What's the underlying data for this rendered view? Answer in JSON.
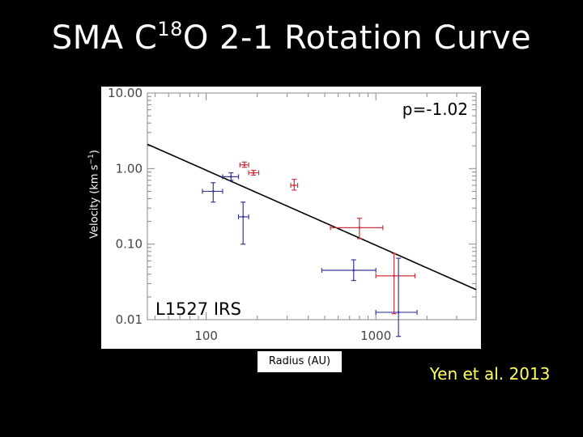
{
  "slide": {
    "title_main": "SMA C",
    "title_sup": "18",
    "title_tail": "O 2-1 Rotation Curve",
    "ylabel_main": "Velocity (km s",
    "ylabel_sup": "−1",
    "ylabel_tail": ")",
    "xlabel": "Radius (AU)",
    "citation": "Yen et al. 2013"
  },
  "chart_data": {
    "type": "scatter",
    "title": "SMA C18O 2-1 Rotation Curve",
    "xlabel": "Radius (AU)",
    "ylabel": "Velocity (km s−1)",
    "xscale": "log",
    "yscale": "log",
    "xlim": [
      45,
      3900
    ],
    "ylim": [
      0.01,
      10
    ],
    "x_ticks": [
      100,
      1000
    ],
    "x_tick_labels": [
      "100",
      "1000"
    ],
    "y_ticks": [
      0.01,
      0.1,
      1,
      10
    ],
    "y_tick_labels": [
      "0.01",
      "0.10",
      "1.00",
      "10.00"
    ],
    "annotations": [
      "p=-1.02",
      "L1527 IRS"
    ],
    "colors": {
      "red": "#cc3340",
      "blue": "#3a3a9c",
      "fit": "#000000"
    },
    "series": [
      {
        "color": "red",
        "points": [
          {
            "x": 168,
            "y": 1.12,
            "xerr": [
              158,
              178
            ],
            "yerr": [
              1.04,
              1.22
            ]
          },
          {
            "x": 190,
            "y": 0.88,
            "xerr": [
              178,
              204
            ],
            "yerr": [
              0.82,
              0.95
            ]
          },
          {
            "x": 330,
            "y": 0.6,
            "xerr": [
              315,
              346
            ],
            "yerr": [
              0.52,
              0.72
            ]
          },
          {
            "x": 800,
            "y": 0.165,
            "xerr": [
              540,
              1100
            ],
            "yerr": [
              0.118,
              0.22
            ]
          },
          {
            "x": 1280,
            "y": 0.038,
            "xerr": [
              1000,
              1700
            ],
            "yerr": [
              0.012,
              0.075
            ]
          }
        ]
      },
      {
        "color": "blue",
        "points": [
          {
            "x": 110,
            "y": 0.5,
            "xerr": [
              95,
              125
            ],
            "yerr": [
              0.36,
              0.65
            ]
          },
          {
            "x": 140,
            "y": 0.78,
            "xerr": [
              125,
              155
            ],
            "yerr": [
              0.7,
              0.88
            ]
          },
          {
            "x": 165,
            "y": 0.23,
            "xerr": [
              155,
              178
            ],
            "yerr": [
              0.1,
              0.36
            ]
          },
          {
            "x": 740,
            "y": 0.045,
            "xerr": [
              480,
              1000
            ],
            "yerr": [
              0.033,
              0.062
            ]
          },
          {
            "x": 1360,
            "y": 0.0125,
            "xerr": [
              1000,
              1750
            ],
            "yerr": [
              0.006,
              0.065
            ]
          }
        ]
      }
    ],
    "fit": {
      "points": [
        [
          45,
          2.1
        ],
        [
          3900,
          0.025
        ]
      ]
    }
  }
}
